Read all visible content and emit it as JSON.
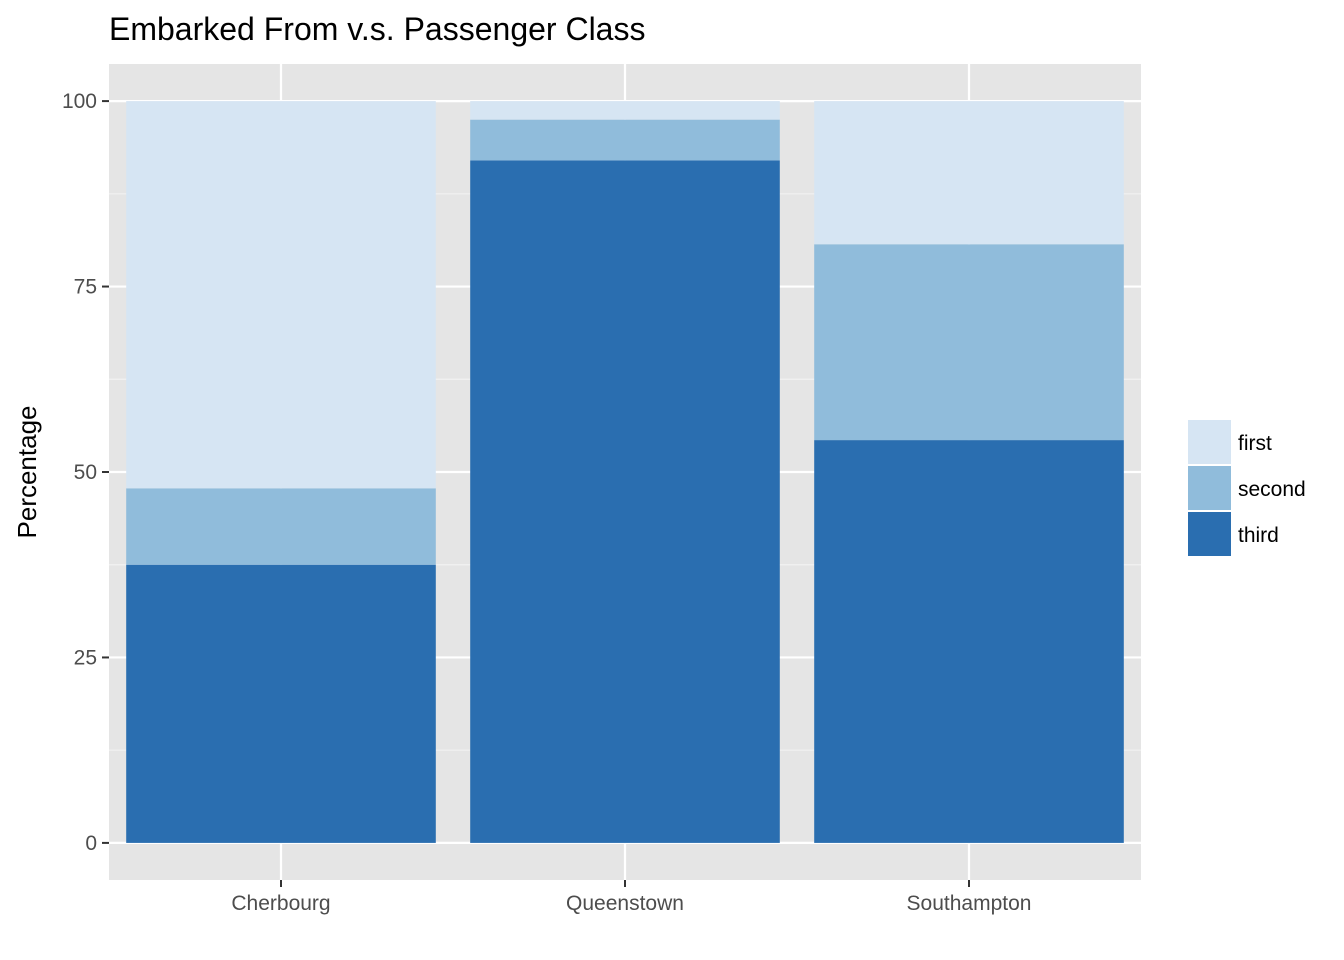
{
  "chart_data": {
    "type": "bar",
    "stacked": true,
    "title": "Embarked From v.s. Passenger Class",
    "xlabel": "",
    "ylabel": "Percentage",
    "ylim": [
      -5,
      105
    ],
    "yticks": [
      0,
      25,
      50,
      75,
      100
    ],
    "categories": [
      "Cherbourg",
      "Queenstown",
      "Southampton"
    ],
    "series": [
      {
        "name": "third",
        "color": "#2a6eb0",
        "values": [
          37.5,
          92.0,
          54.3
        ]
      },
      {
        "name": "second",
        "color": "#90bcdb",
        "values": [
          10.3,
          5.5,
          26.4
        ]
      },
      {
        "name": "first",
        "color": "#d6e5f3",
        "values": [
          52.2,
          2.5,
          19.3
        ]
      }
    ],
    "legend": {
      "position": "right",
      "entries": [
        {
          "label": "first",
          "color": "#d6e5f3"
        },
        {
          "label": "second",
          "color": "#90bcdb"
        },
        {
          "label": "third",
          "color": "#2a6eb0"
        }
      ]
    },
    "grid": true,
    "panel_background": "#e5e5e5"
  }
}
